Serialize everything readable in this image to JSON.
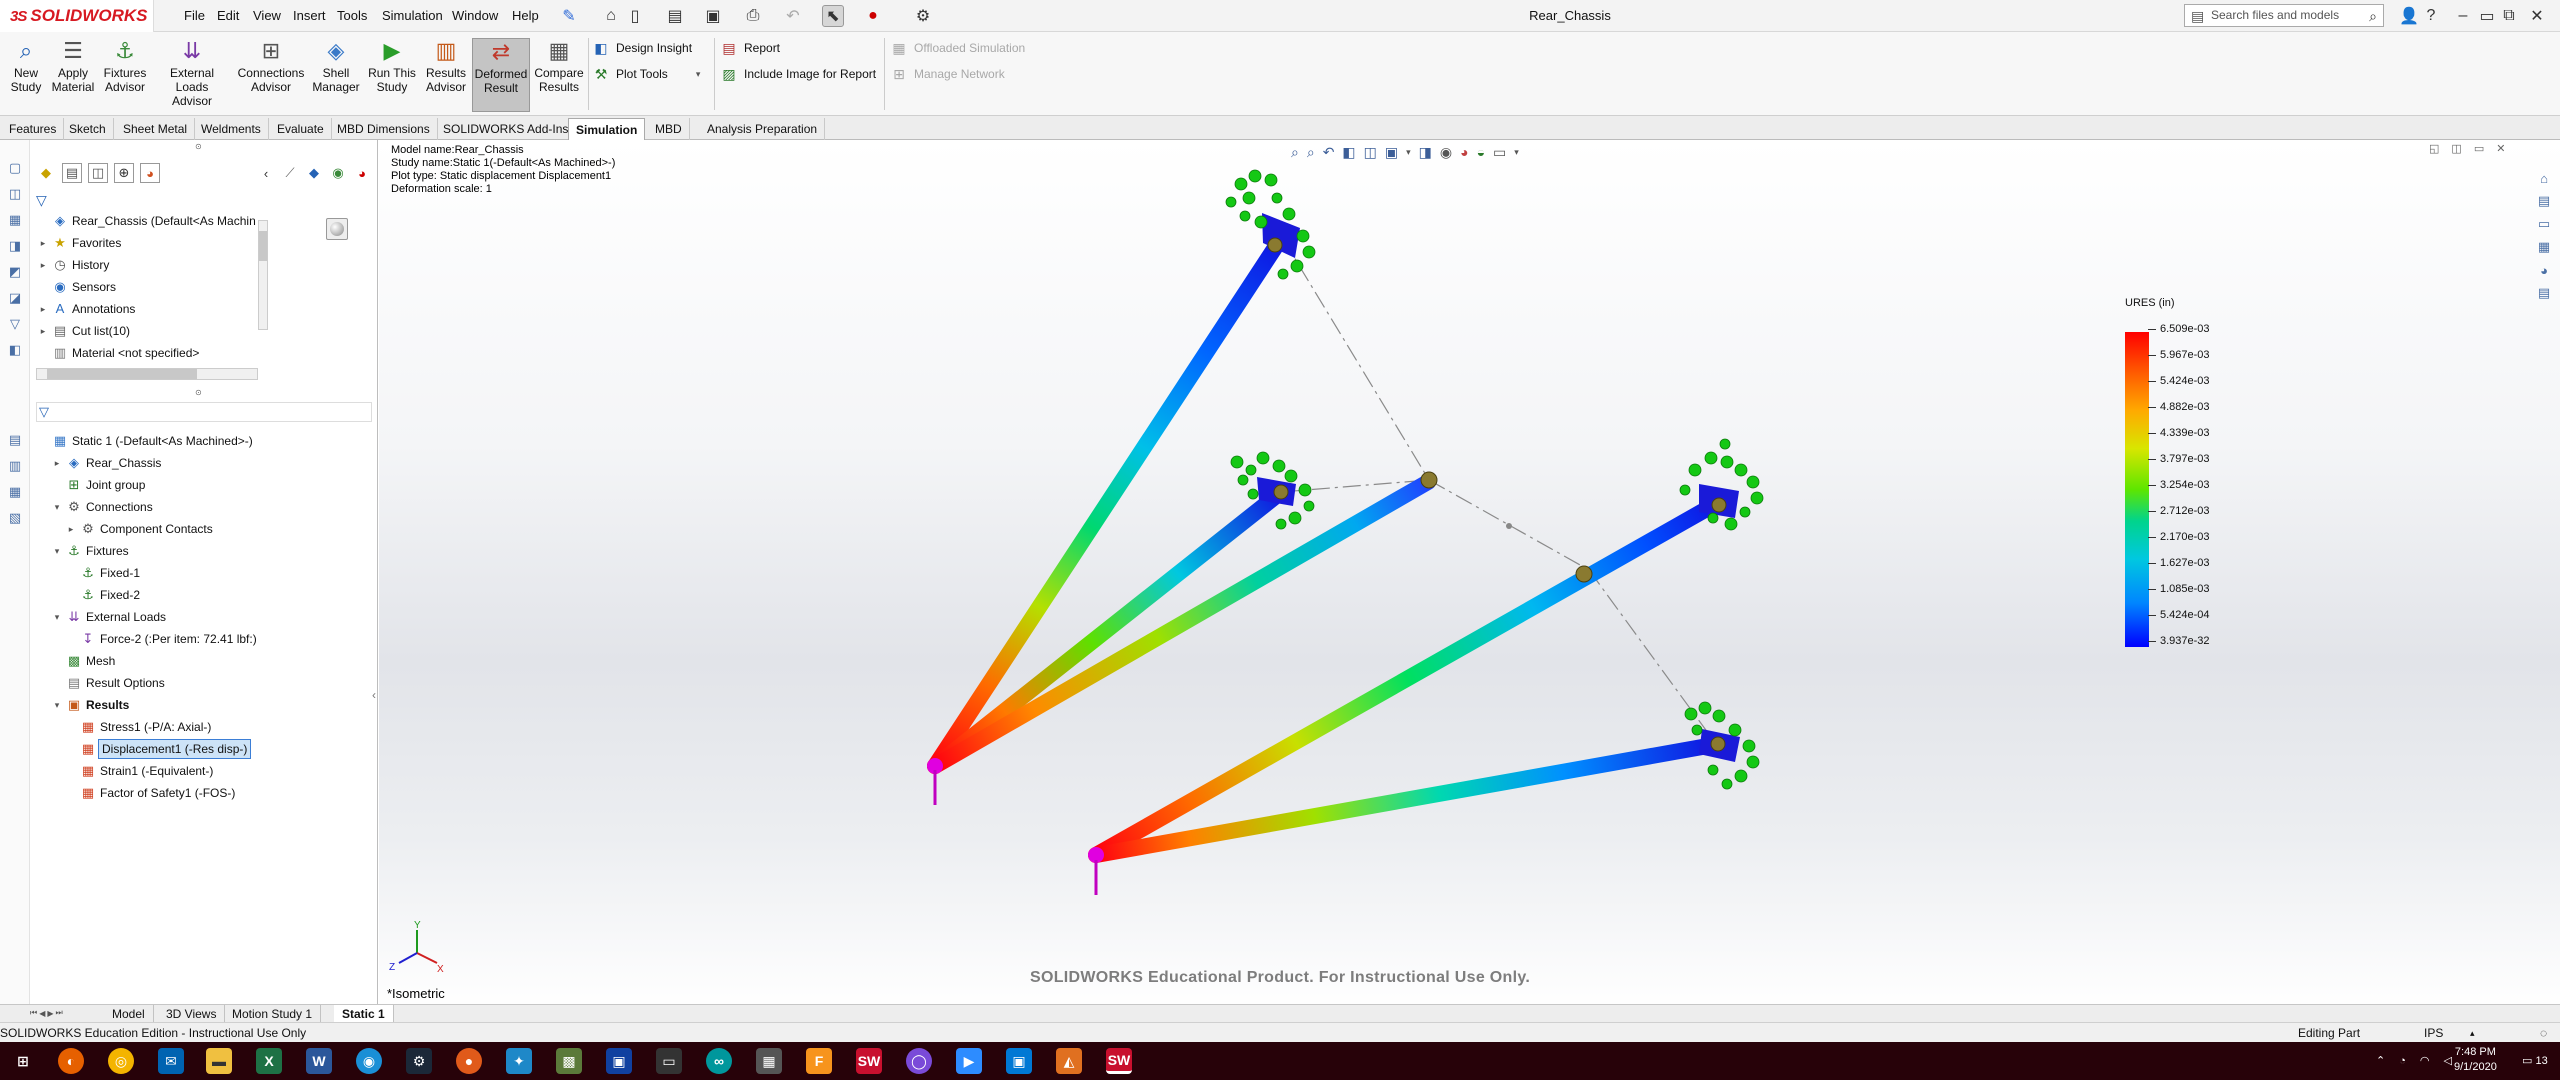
{
  "app": {
    "brand": "SOLIDWORKS",
    "title": "Rear_Chassis"
  },
  "menu": [
    "File",
    "Edit",
    "View",
    "Insert",
    "Tools",
    "Simulation",
    "Window",
    "Help"
  ],
  "search": {
    "placeholder": "Search files and models"
  },
  "ribbon": {
    "buttons": [
      {
        "label": "New\nStudy",
        "icon": "new-study-icon"
      },
      {
        "label": "Apply\nMaterial",
        "icon": "apply-material-icon"
      },
      {
        "label": "Fixtures\nAdvisor",
        "icon": "fixtures-icon"
      },
      {
        "label": "External Loads\nAdvisor",
        "icon": "external-loads-icon"
      },
      {
        "label": "Connections\nAdvisor",
        "icon": "connections-icon"
      },
      {
        "label": "Shell\nManager",
        "icon": "shell-icon"
      },
      {
        "label": "Run This\nStudy",
        "icon": "run-study-icon"
      },
      {
        "label": "Results\nAdvisor",
        "icon": "results-advisor-icon"
      },
      {
        "label": "Deformed\nResult",
        "icon": "deformed-result-icon"
      },
      {
        "label": "Compare\nResults",
        "icon": "compare-results-icon"
      }
    ],
    "design_insight": "Design Insight",
    "plot_tools": "Plot Tools",
    "report": "Report",
    "include_image": "Include Image for Report",
    "offloaded": "Offloaded Simulation",
    "manage_network": "Manage Network"
  },
  "cm_tabs": [
    "Features",
    "Sketch",
    "Sheet Metal",
    "Weldments",
    "Evaluate",
    "MBD Dimensions",
    "SOLIDWORKS Add-Ins",
    "Simulation",
    "MBD",
    "Analysis Preparation"
  ],
  "cm_active": "Simulation",
  "feature_tree": [
    {
      "label": "Rear_Chassis  (Default<As Machin",
      "icon": "part-icon",
      "exp": ""
    },
    {
      "label": "Favorites",
      "icon": "star-icon",
      "exp": "▸"
    },
    {
      "label": "History",
      "icon": "history-icon",
      "exp": "▸"
    },
    {
      "label": "Sensors",
      "icon": "sensor-icon",
      "exp": ""
    },
    {
      "label": "Annotations",
      "icon": "annotation-icon",
      "exp": "▸"
    },
    {
      "label": "Cut list(10)",
      "icon": "cutlist-icon",
      "exp": "▸"
    },
    {
      "label": "Material <not specified>",
      "icon": "material-icon",
      "exp": ""
    }
  ],
  "study_tree": [
    {
      "label": "Static 1 (-Default<As Machined>-)",
      "indent": 0,
      "exp": "",
      "icon": "study-icon"
    },
    {
      "label": "Rear_Chassis",
      "indent": 1,
      "exp": "▸",
      "icon": "part-icon"
    },
    {
      "label": "Joint group",
      "indent": 1,
      "exp": "",
      "icon": "joint-icon"
    },
    {
      "label": "Connections",
      "indent": 1,
      "exp": "▾",
      "icon": "connections-icon"
    },
    {
      "label": "Component Contacts",
      "indent": 2,
      "exp": "▸",
      "icon": "contacts-icon"
    },
    {
      "label": "Fixtures",
      "indent": 1,
      "exp": "▾",
      "icon": "fixtures-icon"
    },
    {
      "label": "Fixed-1",
      "indent": 2,
      "exp": "",
      "icon": "fixed-icon"
    },
    {
      "label": "Fixed-2",
      "indent": 2,
      "exp": "",
      "icon": "fixed-icon"
    },
    {
      "label": "External Loads",
      "indent": 1,
      "exp": "▾",
      "icon": "loads-icon"
    },
    {
      "label": "Force-2 (:Per item: 72.41 lbf:)",
      "indent": 2,
      "exp": "",
      "icon": "force-icon"
    },
    {
      "label": "Mesh",
      "indent": 1,
      "exp": "",
      "icon": "mesh-icon"
    },
    {
      "label": "Result Options",
      "indent": 1,
      "exp": "",
      "icon": "result-options-icon"
    },
    {
      "label": "Results",
      "indent": 1,
      "exp": "▾",
      "icon": "results-icon",
      "bold": true
    },
    {
      "label": "Stress1 (-P/A: Axial-)",
      "indent": 2,
      "exp": "",
      "icon": "plot-icon"
    },
    {
      "label": "Displacement1 (-Res disp-)",
      "indent": 2,
      "exp": "",
      "icon": "plot-icon",
      "selected": true
    },
    {
      "label": "Strain1 (-Equivalent-)",
      "indent": 2,
      "exp": "",
      "icon": "plot-icon"
    },
    {
      "label": "Factor of Safety1 (-FOS-)",
      "indent": 2,
      "exp": "",
      "icon": "plot-icon"
    }
  ],
  "plot_info": {
    "model": "Model name:Rear_Chassis",
    "study": "Study name:Static 1(-Default<As Machined>-)",
    "plot_type": "Plot type: Static displacement Displacement1",
    "deformation": "Deformation scale: 1"
  },
  "legend": {
    "title": "URES (in)",
    "values": [
      "6.509e-03",
      "5.967e-03",
      "5.424e-03",
      "4.882e-03",
      "4.339e-03",
      "3.797e-03",
      "3.254e-03",
      "2.712e-03",
      "2.170e-03",
      "1.627e-03",
      "1.085e-03",
      "5.424e-04",
      "3.937e-32"
    ]
  },
  "viewport": {
    "watermark": "SOLIDWORKS Educational Product. For Instructional Use Only.",
    "view_name": "*Isometric"
  },
  "bottom_tabs": [
    "Model",
    "3D Views",
    "Motion Study 1",
    "Static 1"
  ],
  "bottom_active": "Static 1",
  "status": {
    "left": "SOLIDWORKS Education Edition - Instructional Use Only",
    "mode": "Editing Part",
    "units": "IPS"
  },
  "taskbar": {
    "time": "7:48 PM",
    "date": "9/1/2020",
    "notifications": "13"
  },
  "colors": {
    "taskbar": "#270209",
    "accent": "#d71921",
    "selection": "#cde3f7"
  }
}
